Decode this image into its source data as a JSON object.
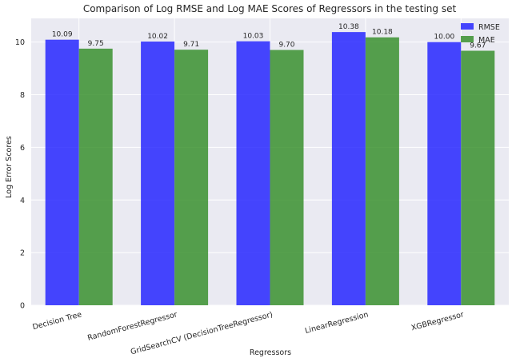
{
  "chart_data": {
    "type": "bar",
    "title": "Comparison of Log RMSE and Log MAE Scores of Regressors in the testing set",
    "xlabel": "Regressors",
    "ylabel": "Log Error Scores",
    "categories": [
      "Decision Tree",
      "RandomForestRegressor",
      "GridSearchCV (DecisionTreeRegressor)",
      "LinearRegression",
      "XGBRegressor"
    ],
    "series": [
      {
        "name": "RMSE",
        "color": "#1a1aff",
        "values": [
          10.09,
          10.02,
          10.03,
          10.38,
          10.0
        ],
        "labels": [
          "10.09",
          "10.02",
          "10.03",
          "10.38",
          "10.00"
        ]
      },
      {
        "name": "MAE",
        "color": "#2e8b22",
        "values": [
          9.75,
          9.71,
          9.7,
          10.18,
          9.67
        ],
        "labels": [
          "9.75",
          "9.71",
          "9.70",
          "10.18",
          "9.67"
        ]
      }
    ],
    "ylim": [
      0,
      10.9
    ],
    "yticks": [
      0,
      2,
      4,
      6,
      8,
      10
    ],
    "ytick_labels": [
      "0",
      "2",
      "4",
      "6",
      "8",
      "10"
    ],
    "grid": true,
    "legend": "top-right",
    "background": "#eaeaf2"
  }
}
